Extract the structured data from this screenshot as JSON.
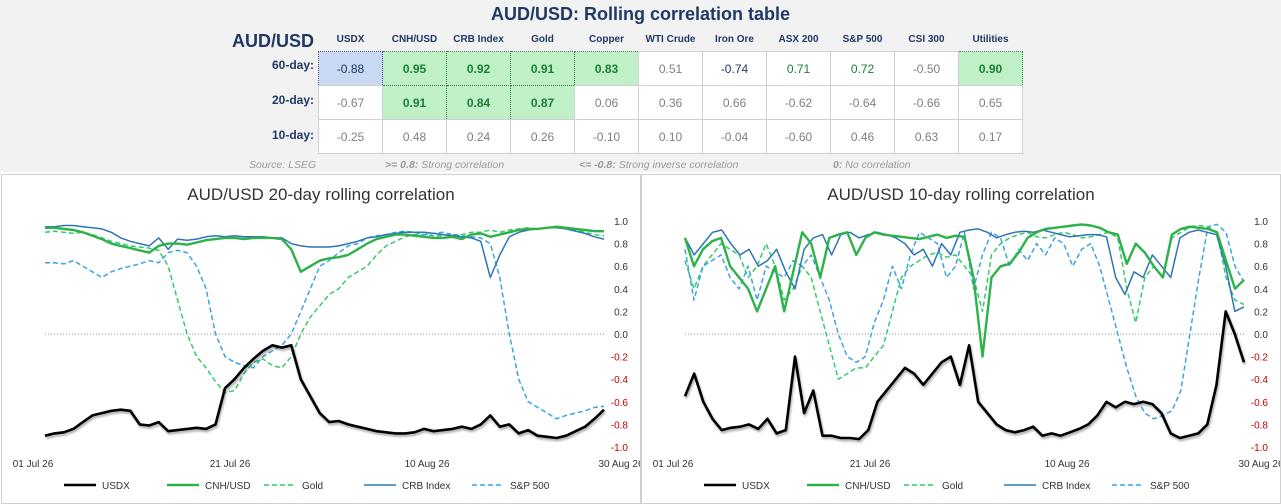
{
  "header": {
    "title": "AUD/USD: Rolling correlation table",
    "pair_label": "AUD/USD",
    "columns": [
      "USDX",
      "CNH/USD",
      "CRB Index",
      "Gold",
      "Copper",
      "WTI Crude",
      "Iron Ore",
      "ASX 200",
      "S&P 500",
      "CSI 300",
      "Utilities"
    ],
    "rows": [
      {
        "label": "60-day:",
        "values": [
          "-0.88",
          "0.95",
          "0.92",
          "0.91",
          "0.83",
          "0.51",
          "-0.74",
          "0.71",
          "0.72",
          "-0.50",
          "0.90"
        ]
      },
      {
        "label": "20-day:",
        "values": [
          "-0.67",
          "0.91",
          "0.84",
          "0.87",
          "0.06",
          "0.36",
          "0.66",
          "-0.62",
          "-0.64",
          "-0.66",
          "0.65"
        ]
      },
      {
        "label": "10-day:",
        "values": [
          "-0.25",
          "0.48",
          "0.24",
          "0.26",
          "-0.10",
          "0.10",
          "-0.04",
          "-0.60",
          "0.46",
          "0.63",
          "0.17"
        ]
      }
    ],
    "source": "Source: LSEG",
    "legend_strong": ">= 0.8:",
    "legend_strong_text": "Strong correlation",
    "legend_inverse": "<= -0.8:",
    "legend_inverse_text": "Strong inverse correlation",
    "legend_none": "0:",
    "legend_none_text": "No correlation",
    "colors": {
      "strong_fill": "#bff0c8",
      "strong_text": "#1a7f37",
      "inverse_fill": "#c9d9f3",
      "neutral_text": "#7f7f7f",
      "navy": "#1f3864"
    }
  },
  "chart_data": [
    {
      "type": "line",
      "title": "AUD/USD 20-day rolling correlation",
      "x_ticks": [
        "01 Jul 26",
        "21 Jul 26",
        "10 Aug 26",
        "30 Aug 26"
      ],
      "ylim": [
        -1.0,
        1.0
      ],
      "y_ticks": [
        "1.0",
        "0.8",
        "0.6",
        "0.4",
        "0.2",
        "0.0",
        "-0.2",
        "-0.4",
        "-0.6",
        "-0.8",
        "-1.0"
      ],
      "series": [
        {
          "name": "USDX",
          "color": "#000000",
          "dash": false,
          "values": [
            -0.9,
            -0.88,
            -0.87,
            -0.84,
            -0.78,
            -0.72,
            -0.7,
            -0.68,
            -0.67,
            -0.68,
            -0.8,
            -0.81,
            -0.78,
            -0.86,
            -0.85,
            -0.84,
            -0.83,
            -0.84,
            -0.8,
            -0.48,
            -0.4,
            -0.3,
            -0.22,
            -0.15,
            -0.1,
            -0.12,
            -0.1,
            -0.4,
            -0.55,
            -0.7,
            -0.78,
            -0.77,
            -0.8,
            -0.82,
            -0.84,
            -0.86,
            -0.87,
            -0.88,
            -0.88,
            -0.87,
            -0.84,
            -0.86,
            -0.85,
            -0.84,
            -0.82,
            -0.84,
            -0.8,
            -0.72,
            -0.82,
            -0.8,
            -0.88,
            -0.85,
            -0.9,
            -0.91,
            -0.92,
            -0.9,
            -0.86,
            -0.82,
            -0.75,
            -0.67
          ]
        },
        {
          "name": "CNH/USD",
          "color": "#2db24a",
          "dash": false,
          "values": [
            0.94,
            0.94,
            0.93,
            0.92,
            0.9,
            0.87,
            0.84,
            0.8,
            0.78,
            0.76,
            0.74,
            0.72,
            0.78,
            0.8,
            0.8,
            0.79,
            0.81,
            0.83,
            0.84,
            0.85,
            0.85,
            0.84,
            0.85,
            0.85,
            0.85,
            0.84,
            0.75,
            0.55,
            0.6,
            0.65,
            0.67,
            0.68,
            0.7,
            0.75,
            0.8,
            0.84,
            0.86,
            0.88,
            0.88,
            0.87,
            0.86,
            0.85,
            0.85,
            0.86,
            0.84,
            0.88,
            0.89,
            0.86,
            0.88,
            0.9,
            0.92,
            0.93,
            0.93,
            0.94,
            0.95,
            0.94,
            0.93,
            0.92,
            0.91,
            0.91
          ]
        },
        {
          "name": "Gold",
          "color": "#33cc66",
          "dash": true,
          "values": [
            0.9,
            0.91,
            0.9,
            0.89,
            0.9,
            0.88,
            0.85,
            0.82,
            0.8,
            0.78,
            0.77,
            0.76,
            0.74,
            0.6,
            0.3,
            0.0,
            -0.2,
            -0.3,
            -0.42,
            -0.52,
            -0.5,
            -0.35,
            -0.25,
            -0.22,
            -0.28,
            -0.3,
            -0.2,
            0.0,
            0.15,
            0.25,
            0.35,
            0.4,
            0.5,
            0.55,
            0.6,
            0.7,
            0.78,
            0.82,
            0.86,
            0.88,
            0.88,
            0.87,
            0.87,
            0.88,
            0.88,
            0.9,
            0.9,
            0.92,
            0.9,
            0.92,
            0.93,
            0.94,
            0.93,
            0.94,
            0.95,
            0.94,
            0.92,
            0.9,
            0.88,
            0.87
          ]
        },
        {
          "name": "CRB Index",
          "color": "#2e75b6",
          "dash": false,
          "values": [
            0.95,
            0.95,
            0.96,
            0.96,
            0.95,
            0.94,
            0.93,
            0.9,
            0.85,
            0.82,
            0.8,
            0.78,
            0.85,
            0.75,
            0.84,
            0.83,
            0.84,
            0.86,
            0.87,
            0.86,
            0.87,
            0.86,
            0.86,
            0.86,
            0.85,
            0.85,
            0.8,
            0.78,
            0.77,
            0.77,
            0.77,
            0.78,
            0.8,
            0.82,
            0.85,
            0.86,
            0.88,
            0.89,
            0.9,
            0.9,
            0.9,
            0.89,
            0.88,
            0.87,
            0.86,
            0.85,
            0.82,
            0.5,
            0.7,
            0.86,
            0.9,
            0.92,
            0.93,
            0.94,
            0.94,
            0.93,
            0.91,
            0.89,
            0.86,
            0.84
          ]
        },
        {
          "name": "S&P 500",
          "color": "#3ba3e0",
          "dash": true,
          "values": [
            0.63,
            0.63,
            0.62,
            0.65,
            0.6,
            0.55,
            0.5,
            0.55,
            0.58,
            0.6,
            0.62,
            0.65,
            0.63,
            0.72,
            0.74,
            0.72,
            0.6,
            0.4,
            0.0,
            -0.2,
            -0.25,
            -0.28,
            -0.3,
            -0.2,
            -0.15,
            -0.1,
            0.0,
            0.2,
            0.4,
            0.6,
            0.65,
            0.72,
            0.78,
            0.8,
            0.85,
            0.87,
            0.88,
            0.9,
            0.91,
            0.9,
            0.88,
            0.89,
            0.9,
            0.88,
            0.87,
            0.86,
            0.85,
            0.8,
            0.5,
            0.0,
            -0.4,
            -0.6,
            -0.65,
            -0.7,
            -0.75,
            -0.72,
            -0.7,
            -0.68,
            -0.65,
            -0.64
          ]
        }
      ]
    },
    {
      "type": "line",
      "title": "AUD/USD 10-day rolling correlation",
      "x_ticks": [
        "01 Jul 26",
        "21 Jul 26",
        "10 Aug 26",
        "30 Aug 26"
      ],
      "ylim": [
        -1.0,
        1.0
      ],
      "y_ticks": [
        "1.0",
        "0.8",
        "0.6",
        "0.4",
        "0.2",
        "0.0",
        "-0.2",
        "-0.4",
        "-0.6",
        "-0.8",
        "-1.0"
      ],
      "series": [
        {
          "name": "USDX",
          "color": "#000000",
          "dash": false,
          "values": [
            -0.55,
            -0.35,
            -0.6,
            -0.75,
            -0.85,
            -0.83,
            -0.82,
            -0.8,
            -0.84,
            -0.75,
            -0.88,
            -0.85,
            -0.2,
            -0.7,
            -0.5,
            -0.9,
            -0.9,
            -0.92,
            -0.92,
            -0.93,
            -0.85,
            -0.6,
            -0.5,
            -0.4,
            -0.3,
            -0.35,
            -0.45,
            -0.35,
            -0.25,
            -0.2,
            -0.45,
            -0.1,
            -0.6,
            -0.7,
            -0.8,
            -0.85,
            -0.87,
            -0.85,
            -0.82,
            -0.9,
            -0.88,
            -0.9,
            -0.87,
            -0.84,
            -0.8,
            -0.72,
            -0.6,
            -0.65,
            -0.6,
            -0.62,
            -0.6,
            -0.62,
            -0.7,
            -0.88,
            -0.92,
            -0.9,
            -0.88,
            -0.8,
            -0.45,
            0.2,
            0.0,
            -0.25
          ]
        },
        {
          "name": "CNH/USD",
          "color": "#2db24a",
          "dash": false,
          "values": [
            0.85,
            0.6,
            0.75,
            0.82,
            0.85,
            0.6,
            0.5,
            0.4,
            0.2,
            0.4,
            0.6,
            0.2,
            0.55,
            0.9,
            0.8,
            0.5,
            0.85,
            0.88,
            0.9,
            0.7,
            0.85,
            0.9,
            0.88,
            0.87,
            0.86,
            0.85,
            0.84,
            0.86,
            0.88,
            0.85,
            0.87,
            0.86,
            0.5,
            -0.2,
            0.5,
            0.6,
            0.62,
            0.72,
            0.85,
            0.9,
            0.93,
            0.94,
            0.95,
            0.96,
            0.97,
            0.96,
            0.94,
            0.9,
            0.88,
            0.62,
            0.8,
            0.72,
            0.6,
            0.5,
            0.88,
            0.93,
            0.95,
            0.94,
            0.93,
            0.9,
            0.65,
            0.4,
            0.48
          ]
        },
        {
          "name": "Gold",
          "color": "#33cc66",
          "dash": true,
          "values": [
            0.65,
            0.4,
            0.6,
            0.7,
            0.8,
            0.75,
            0.7,
            0.5,
            0.6,
            0.8,
            0.6,
            0.3,
            0.4,
            0.6,
            0.5,
            0.2,
            -0.1,
            -0.4,
            -0.35,
            -0.3,
            -0.3,
            -0.2,
            -0.1,
            0.2,
            0.5,
            0.6,
            0.65,
            0.7,
            0.72,
            0.68,
            0.7,
            0.6,
            0.5,
            0.2,
            0.7,
            0.8,
            0.85,
            0.88,
            0.9,
            0.86,
            0.85,
            0.88,
            0.9,
            0.88,
            0.85,
            0.86,
            0.88,
            0.9,
            0.85,
            0.4,
            0.1,
            0.5,
            0.6,
            0.5,
            0.85,
            0.9,
            0.95,
            0.96,
            0.95,
            0.9,
            0.5,
            0.3,
            0.26
          ]
        },
        {
          "name": "CRB Index",
          "color": "#2e75b6",
          "dash": false,
          "values": [
            0.85,
            0.7,
            0.8,
            0.9,
            0.92,
            0.8,
            0.7,
            0.75,
            0.6,
            0.65,
            0.75,
            0.55,
            0.4,
            0.75,
            0.85,
            0.88,
            0.7,
            0.88,
            0.9,
            0.85,
            0.88,
            0.9,
            0.88,
            0.85,
            0.8,
            0.7,
            0.75,
            0.6,
            0.8,
            0.7,
            0.9,
            0.92,
            0.93,
            0.9,
            0.85,
            0.88,
            0.9,
            0.91,
            0.9,
            0.92,
            0.9,
            0.88,
            0.86,
            0.87,
            0.88,
            0.88,
            0.86,
            0.5,
            0.35,
            0.55,
            0.5,
            0.7,
            0.6,
            0.5,
            0.85,
            0.9,
            0.92,
            0.9,
            0.88,
            0.6,
            0.2,
            0.24
          ]
        },
        {
          "name": "S&P 500",
          "color": "#3ba3e0",
          "dash": true,
          "values": [
            0.75,
            0.3,
            0.6,
            0.65,
            0.7,
            0.5,
            0.4,
            0.6,
            0.3,
            0.6,
            0.55,
            0.5,
            0.65,
            0.6,
            0.7,
            0.5,
            0.3,
            0.0,
            -0.2,
            -0.25,
            -0.2,
            0.1,
            0.3,
            0.6,
            0.4,
            0.7,
            0.9,
            0.85,
            0.8,
            0.5,
            0.6,
            0.9,
            0.4,
            0.7,
            0.9,
            0.85,
            0.6,
            0.75,
            0.65,
            0.8,
            0.7,
            0.85,
            0.8,
            0.6,
            0.75,
            0.8,
            0.6,
            0.3,
            0.0,
            -0.3,
            -0.55,
            -0.7,
            -0.75,
            -0.72,
            -0.68,
            -0.5,
            0.0,
            0.5,
            0.95,
            0.97,
            0.9,
            0.6,
            0.46
          ]
        }
      ]
    }
  ]
}
